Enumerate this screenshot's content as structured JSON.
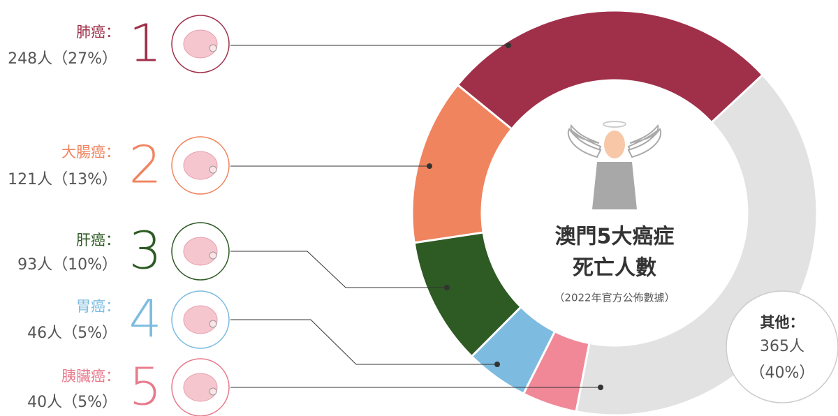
{
  "chart_data": {
    "type": "donut",
    "title": "澳門5大癌症",
    "title_line2": "死亡人數",
    "subtitle": "（2022年官方公佈數據）",
    "categories": [
      "肺癌：",
      "大腸癌：",
      "肝癌：",
      "胃癌：",
      "胰臟癌：",
      "其他："
    ],
    "values": [
      248,
      121,
      93,
      46,
      40,
      365
    ],
    "value_labels": [
      "248人（27%）",
      "121人（13%）",
      "93人（10%）",
      "46人（5%）",
      "40人（5%）",
      "365人（40%）"
    ],
    "ranks": [
      1,
      2,
      3,
      4,
      5
    ],
    "colors": [
      "#a0304a",
      "#f0845f",
      "#2e5a24",
      "#7dbce0",
      "#f08898",
      "#e2e2e2"
    ]
  }
}
